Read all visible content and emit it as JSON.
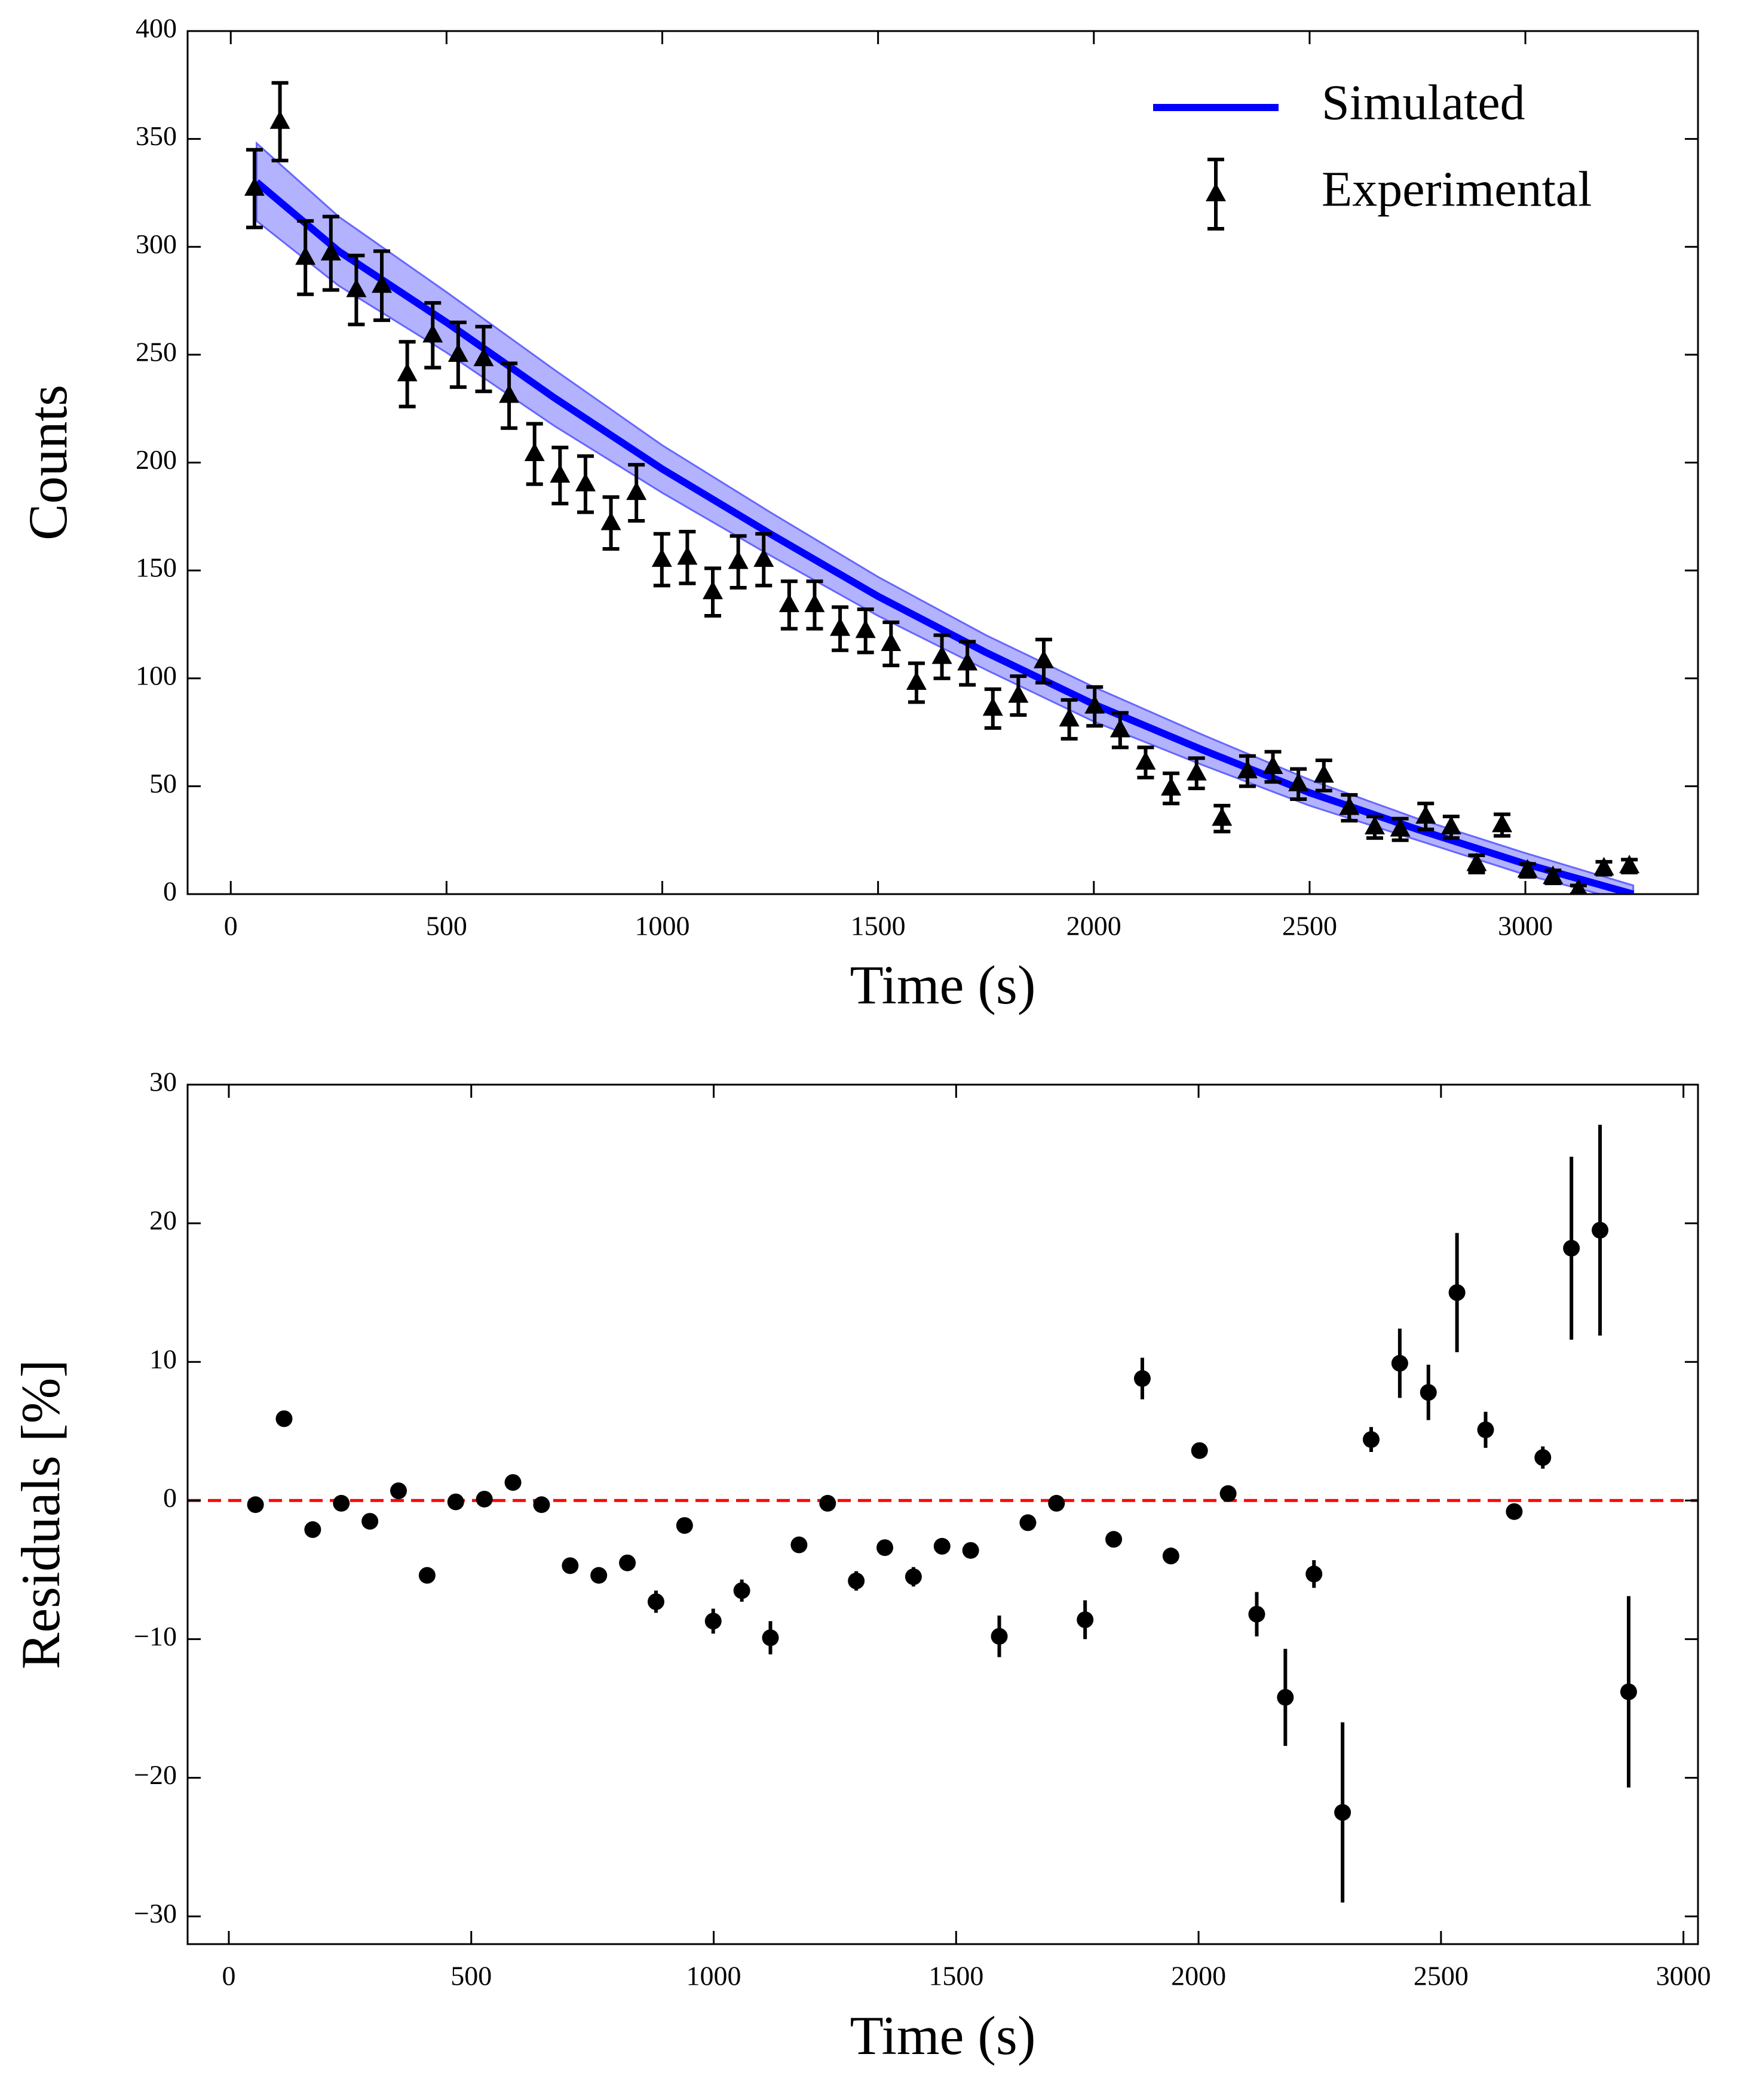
{
  "chart_data": [
    {
      "type": "errorbar",
      "xlabel": "Time (s)",
      "ylabel": "Counts",
      "xlim": [
        -100,
        3400
      ],
      "ylim": [
        0,
        400
      ],
      "xticks": [
        0,
        500,
        1000,
        1500,
        2000,
        2500,
        3000
      ],
      "yticks": [
        0,
        50,
        100,
        150,
        200,
        250,
        300,
        350,
        400
      ],
      "legend": "upper right",
      "series": [
        {
          "name": "Simulated",
          "color": "#0000ff",
          "band_color": "#6666ff",
          "x": [
            60,
            250,
            500,
            750,
            1000,
            1250,
            1500,
            1750,
            2000,
            2250,
            2500,
            2750,
            3000,
            3250
          ],
          "values": [
            330,
            298,
            265,
            230,
            197,
            167,
            138,
            112,
            88,
            67,
            47,
            30,
            14,
            0
          ],
          "band_lower": [
            312,
            282,
            251,
            217,
            186,
            157,
            129,
            104,
            80,
            60,
            41,
            25,
            9,
            -4
          ],
          "band_upper": [
            348,
            314,
            279,
            243,
            208,
            177,
            147,
            120,
            96,
            74,
            53,
            35,
            19,
            4
          ]
        },
        {
          "name": "Experimental",
          "color": "#000000",
          "marker": "triangle",
          "caps": true,
          "x": [
            55,
            114,
            173,
            232,
            291,
            350,
            409,
            468,
            527,
            586,
            645,
            704,
            763,
            822,
            881,
            940,
            999,
            1058,
            1117,
            1176,
            1235,
            1294,
            1353,
            1412,
            1471,
            1530,
            1589,
            1648,
            1707,
            1766,
            1825,
            1884,
            1943,
            2002,
            2061,
            2120,
            2179,
            2238,
            2297,
            2356,
            2415,
            2474,
            2533,
            2592,
            2651,
            2710,
            2769,
            2828,
            2887,
            2946,
            3005,
            3064,
            3123,
            3182,
            3241
          ],
          "values": [
            327,
            358,
            295,
            297,
            280,
            282,
            241,
            259,
            250,
            248,
            231,
            204,
            194,
            190,
            172,
            186,
            155,
            156,
            140,
            154,
            155,
            134,
            134,
            123,
            122,
            116,
            98,
            110,
            107,
            86,
            92,
            108,
            81,
            87,
            76,
            61,
            49,
            56,
            35,
            57,
            59,
            51,
            55,
            40,
            31,
            30,
            36,
            31,
            14,
            32,
            11,
            8,
            2,
            12,
            13
          ],
          "errors": [
            18,
            18,
            17,
            17,
            16,
            16,
            15,
            15,
            15,
            15,
            15,
            14,
            13,
            13,
            12,
            13,
            12,
            12,
            11,
            12,
            12,
            11,
            11,
            10,
            10,
            10,
            9,
            10,
            10,
            9,
            9,
            10,
            9,
            9,
            8,
            7,
            7,
            7,
            6,
            7,
            7,
            7,
            7,
            6,
            5,
            5,
            6,
            5,
            4,
            5,
            3,
            3,
            2,
            3,
            3
          ]
        }
      ]
    },
    {
      "type": "errorbar",
      "xlabel": "Time (s)",
      "ylabel": "Residuals [%]",
      "xlim": [
        -85,
        3030
      ],
      "ylim": [
        -32,
        30
      ],
      "xticks": [
        0,
        500,
        1000,
        1500,
        2000,
        2500,
        3000
      ],
      "yticks": [
        {
          "value": -30,
          "label": "−30"
        },
        {
          "value": -20,
          "label": "−20"
        },
        {
          "value": -10,
          "label": "−10"
        },
        0,
        10,
        20,
        30
      ],
      "hline": {
        "value": 0,
        "color": "#ff0000"
      },
      "series": [
        {
          "color": "#000000",
          "marker": "circle",
          "caps": false,
          "x": [
            55,
            114,
            173,
            232,
            291,
            350,
            409,
            468,
            527,
            586,
            645,
            704,
            763,
            822,
            881,
            940,
            999,
            1058,
            1117,
            1176,
            1235,
            1294,
            1353,
            1412,
            1471,
            1530,
            1589,
            1648,
            1707,
            1766,
            1825,
            1884,
            1943,
            2002,
            2061,
            2120,
            2179,
            2238,
            2297,
            2356,
            2415,
            2474,
            2533,
            2592,
            2651,
            2710,
            2769,
            2828,
            2887
          ],
          "values": [
            -0.3,
            5.9,
            -2.1,
            -0.2,
            -1.5,
            0.7,
            -5.4,
            -0.1,
            0.1,
            1.3,
            -0.3,
            -4.7,
            -5.4,
            -4.5,
            -7.3,
            -1.8,
            -8.7,
            -6.5,
            -9.9,
            -3.2,
            -0.2,
            -5.8,
            -3.4,
            -5.5,
            -3.3,
            -3.6,
            -9.8,
            -1.6,
            -0.2,
            -8.6,
            -2.8,
            8.8,
            -4.0,
            3.6,
            0.5,
            -8.2,
            -14.2,
            -5.3,
            -22.5,
            4.4,
            9.9,
            7.8,
            15.0,
            5.1,
            -0.8,
            3.1,
            18.2,
            19.5,
            -13.8
          ],
          "errors": [
            0.2,
            0.2,
            0.2,
            0.2,
            0.2,
            0.2,
            0.2,
            0.2,
            0.2,
            0.2,
            0.2,
            0.2,
            0.2,
            0.2,
            0.8,
            0.2,
            0.9,
            0.8,
            1.2,
            0.2,
            0.2,
            0.7,
            0.2,
            0.7,
            0.2,
            0.2,
            1.5,
            0.2,
            0.2,
            1.4,
            0.2,
            1.5,
            0.6,
            0.5,
            0.2,
            1.6,
            3.5,
            1.0,
            6.5,
            0.9,
            2.5,
            2.0,
            4.3,
            1.3,
            0.2,
            0.8,
            6.6,
            7.6,
            6.9
          ]
        }
      ]
    }
  ]
}
